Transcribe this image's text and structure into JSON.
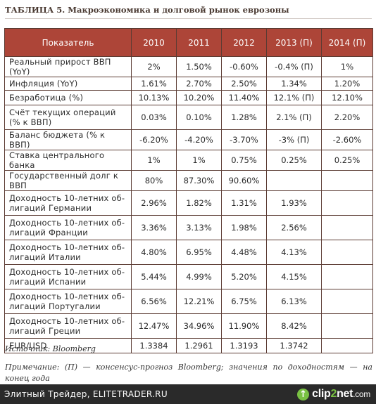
{
  "title": "ТАБЛИЦА 5. Макроэкономика и долговой рынок еврозоны",
  "table": {
    "headers": [
      "Показатель",
      "2010",
      "2011",
      "2012",
      "2013 (П)",
      "2014 (П)"
    ],
    "rows": [
      [
        "Реальный прирост ВВП (YoY)",
        "2%",
        "1.50%",
        "-0.60%",
        "-0.4% (П)",
        "1%"
      ],
      [
        "Инфляция (YoY)",
        "1.61%",
        "2.70%",
        "2.50%",
        "1.34%",
        "1.20%"
      ],
      [
        "Безработица (%)",
        "10.13%",
        "10.20%",
        "11.40%",
        "12.1% (П)",
        "12.10%"
      ],
      [
        "Счёт текущих операций (% к ВВП)",
        "0.03%",
        "0.10%",
        "1.28%",
        "2.1% (П)",
        "2.20%"
      ],
      [
        "Баланс бюджета (% к ВВП)",
        "-6.20%",
        "-4.20%",
        "-3.70%",
        "-3% (П)",
        "-2.60%"
      ],
      [
        "Ставка центрального банка",
        "1%",
        "1%",
        "0.75%",
        "0.25%",
        "0.25%"
      ],
      [
        "Государственный долг к ВВП",
        "80%",
        "87.30%",
        "90.60%",
        "",
        ""
      ],
      [
        "Доходность 10-летних об-лигаций Германии",
        "2.96%",
        "1.82%",
        "1.31%",
        "1.93%",
        ""
      ],
      [
        "Доходность 10-летних об-лигаций Франции",
        "3.36%",
        "3.13%",
        "1.98%",
        "2.56%",
        ""
      ],
      [
        "Доходность 10-летних об-лигаций Италии",
        "4.80%",
        "6.95%",
        "4.48%",
        "4.13%",
        ""
      ],
      [
        "Доходность 10-летних об-лигаций Испании",
        "5.44%",
        "4.99%",
        "5.20%",
        "4.15%",
        ""
      ],
      [
        "Доходность 10-летних об-лигаций Португалии",
        "6.56%",
        "12.21%",
        "6.75%",
        "6.13%",
        ""
      ],
      [
        "Доходность 10-летних об-лигаций Греции",
        "12.47%",
        "34.96%",
        "11.90%",
        "8.42%",
        ""
      ],
      [
        "EUR/USD",
        "1.3384",
        "1.2961",
        "1.3193",
        "1.3742",
        ""
      ]
    ]
  },
  "source": "Источник: Bloomberg",
  "note": "Примечание: (П) — консенсус-прогноз Bloomberg; значения по доходностям — на конец года",
  "footer": {
    "text": "Элитный Трейдер, ELITETRADER.RU",
    "logo_text_left": "clip",
    "logo_text_accent": "2",
    "logo_text_right": "net",
    "logo_suffix": ".com",
    "logo_icon": "up-arrow-icon"
  }
}
